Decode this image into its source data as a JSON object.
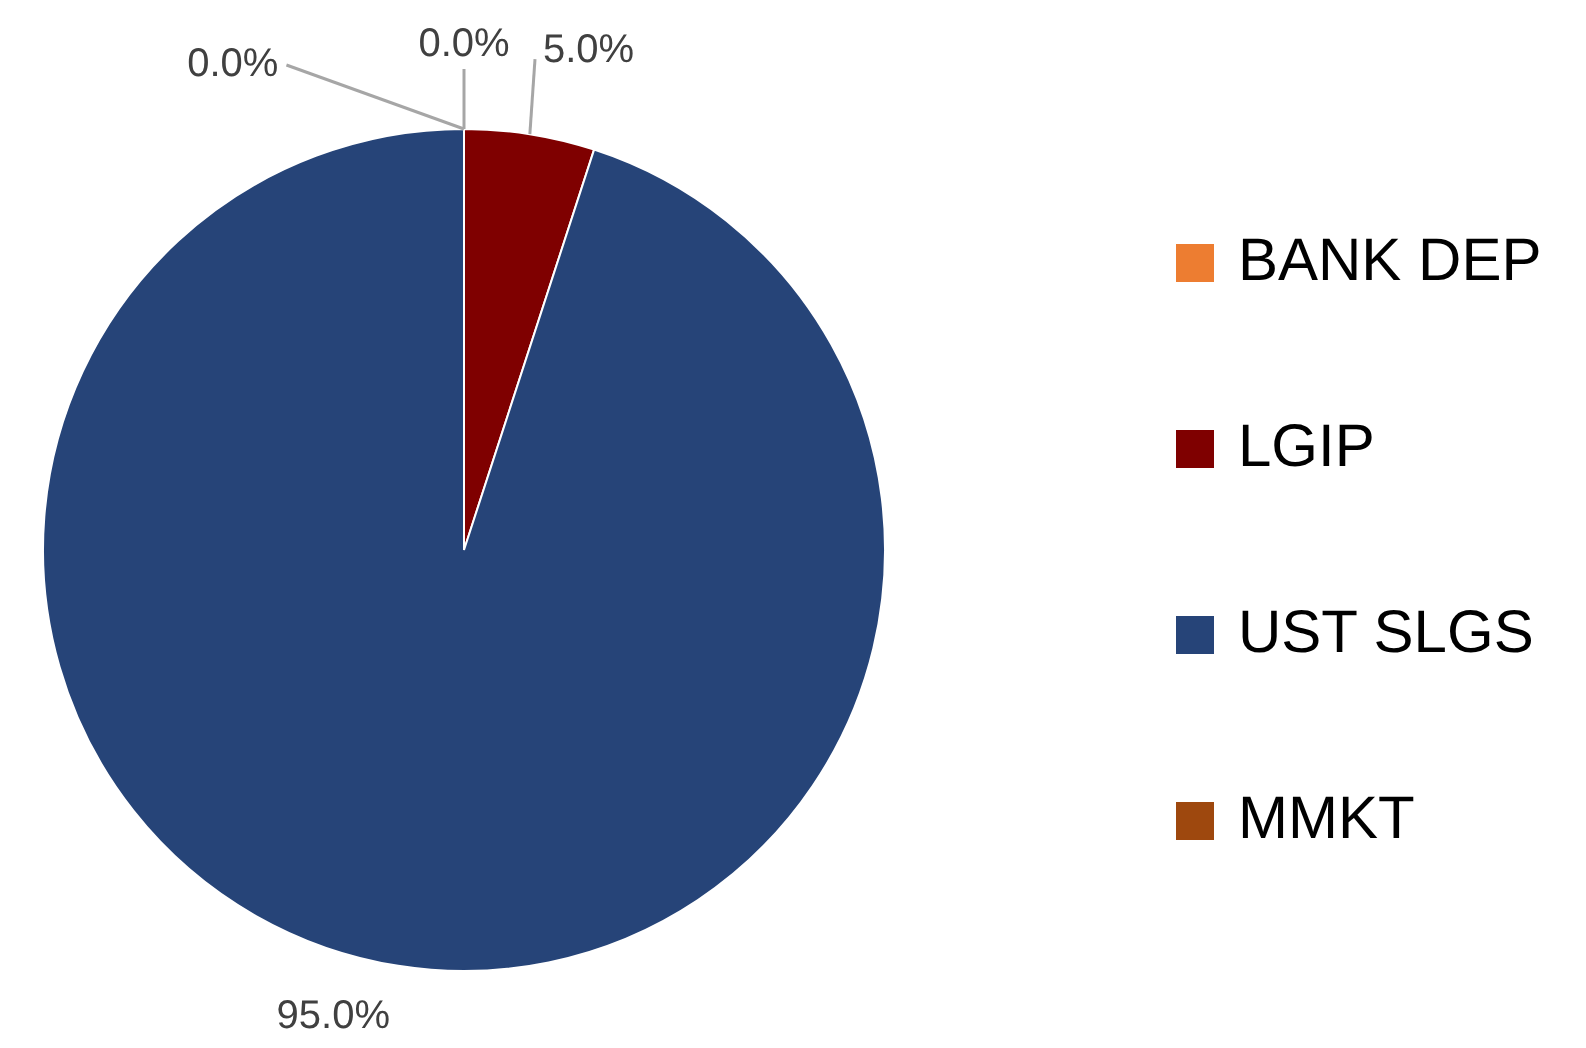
{
  "chart_data": {
    "type": "pie",
    "categories": [
      "BANK DEP",
      "LGIP",
      "UST SLGS",
      "MMKT"
    ],
    "values": [
      0.0,
      5.0,
      95.0,
      0.0
    ],
    "colors": [
      "#ed7d31",
      "#7f0000",
      "#264478",
      "#9e480e"
    ],
    "value_labels": [
      "0.0%",
      "5.0%",
      "95.0%",
      "0.0%"
    ],
    "legend": "right"
  }
}
